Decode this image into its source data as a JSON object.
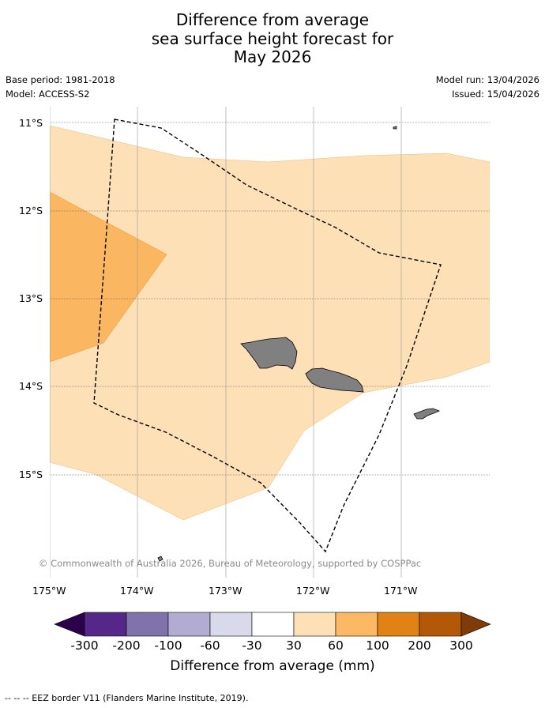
{
  "title": {
    "line1": "Difference from average",
    "line2": "sea surface height forecast for",
    "line3": "May 2026"
  },
  "meta": {
    "base_period": "Base period: 1981-2018",
    "model": "Model: ACCESS-S2",
    "model_run": "Model run: 13/04/2026",
    "issued": "Issued: 15/04/2026"
  },
  "map": {
    "lat_labels": [
      "11°S",
      "12°S",
      "13°S",
      "14°S",
      "15°S"
    ],
    "lon_labels": [
      "175°W",
      "174°W",
      "173°W",
      "172°W",
      "171°W"
    ],
    "copyright": "© Commonwealth of Australia 2026, Bureau of Meteorology, supported by COSPPac",
    "colors": {
      "band_30_60": "#fde0b6",
      "band_60_100": "#fbb662",
      "land": "#808080",
      "eez": "#000000"
    }
  },
  "colorbar": {
    "label": "Difference from average (mm)",
    "ticks": [
      "-300",
      "-200",
      "-100",
      "-60",
      "-30",
      "30",
      "60",
      "100",
      "200",
      "300"
    ],
    "colors": [
      "#2d004b",
      "#542788",
      "#8073ac",
      "#b2abd2",
      "#d8daeb",
      "#ffffff",
      "#fee0b6",
      "#fdb863",
      "#e08214",
      "#b35806",
      "#7f3b08"
    ]
  },
  "footer": {
    "eez_legend": "--  --  -- EEZ border V11 (Flanders Marine Institute, 2019)."
  }
}
